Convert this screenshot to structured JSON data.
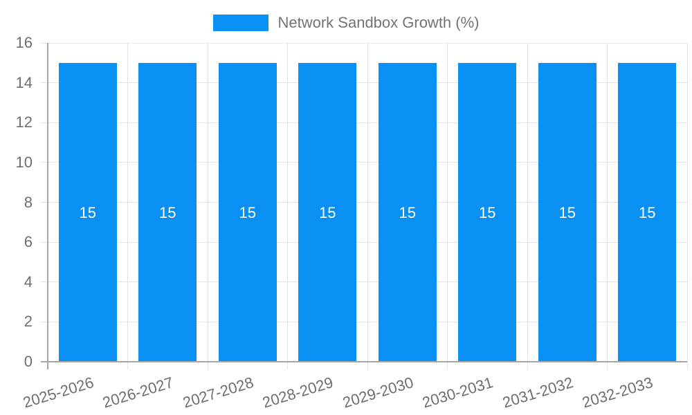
{
  "legend": {
    "label": "Network Sandbox Growth (%)",
    "swatch_color": "#0a8ff2",
    "position": "top"
  },
  "chart_data": {
    "type": "bar",
    "title": "Network Sandbox Growth (%)",
    "categories": [
      "2025-2026",
      "2026-2027",
      "2027-2028",
      "2028-2029",
      "2029-2030",
      "2030-2031",
      "2031-2032",
      "2032-2033"
    ],
    "series": [
      {
        "name": "Network Sandbox Growth (%)",
        "values": [
          15,
          15,
          15,
          15,
          15,
          15,
          15,
          15
        ]
      }
    ],
    "data_labels": [
      "15",
      "15",
      "15",
      "15",
      "15",
      "15",
      "15",
      "15"
    ],
    "xlabel": "",
    "ylabel": "",
    "ylim": [
      0,
      16
    ],
    "yticks": [
      0,
      2,
      4,
      6,
      8,
      10,
      12,
      14,
      16
    ],
    "grid": true,
    "legend_position": "top",
    "x_tick_rotation_deg": -17,
    "colors": {
      "bar": "#0a8ff2",
      "data_label": "#ffffff",
      "grid": "#e3e3e3",
      "axis": "#a6a6a6",
      "tick_label": "#6e6e6e",
      "legend_label": "#737373",
      "background": "#ffffff"
    }
  }
}
